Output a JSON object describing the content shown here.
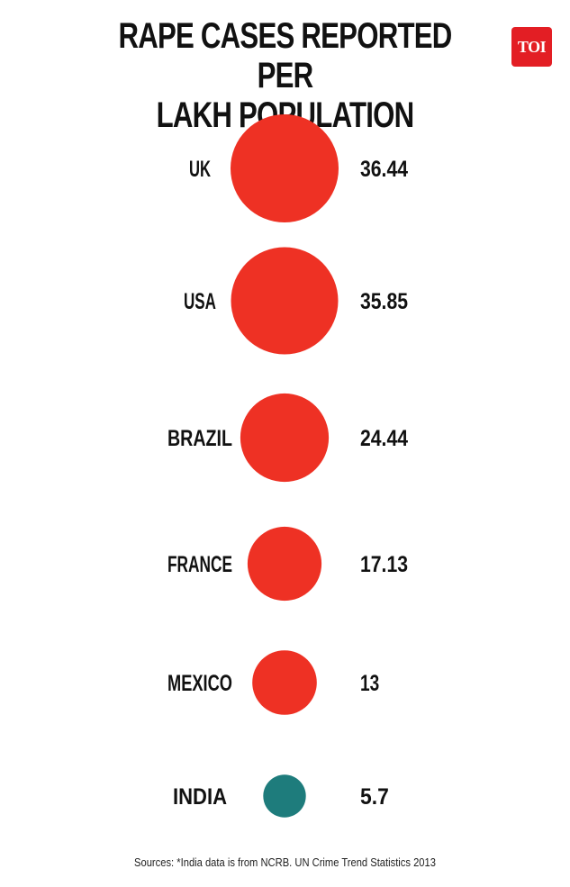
{
  "title_line1": "RAPE CASES REPORTED PER",
  "title_line2": "LAKH POPULATION",
  "logo_text": "TOI",
  "source": "Sources: *India data is from NCRB. UN Crime Trend Statistics 2013",
  "colors": {
    "bubble_red": "#ee3124",
    "bubble_teal": "#1e7c7c",
    "logo_red": "#e31e24"
  },
  "chart_data": {
    "type": "bubble",
    "title": "RAPE CASES REPORTED PER LAKH POPULATION",
    "categories": [
      "UK",
      "USA",
      "BRAZIL",
      "FRANCE",
      "MEXICO",
      "INDIA"
    ],
    "values": [
      36.44,
      35.85,
      24.44,
      17.13,
      13,
      5.7
    ],
    "value_labels": [
      "36.44",
      "35.85",
      "24.44",
      "17.13",
      "13",
      "5.7"
    ],
    "highlight": "INDIA",
    "legend": "none",
    "grid": false
  }
}
